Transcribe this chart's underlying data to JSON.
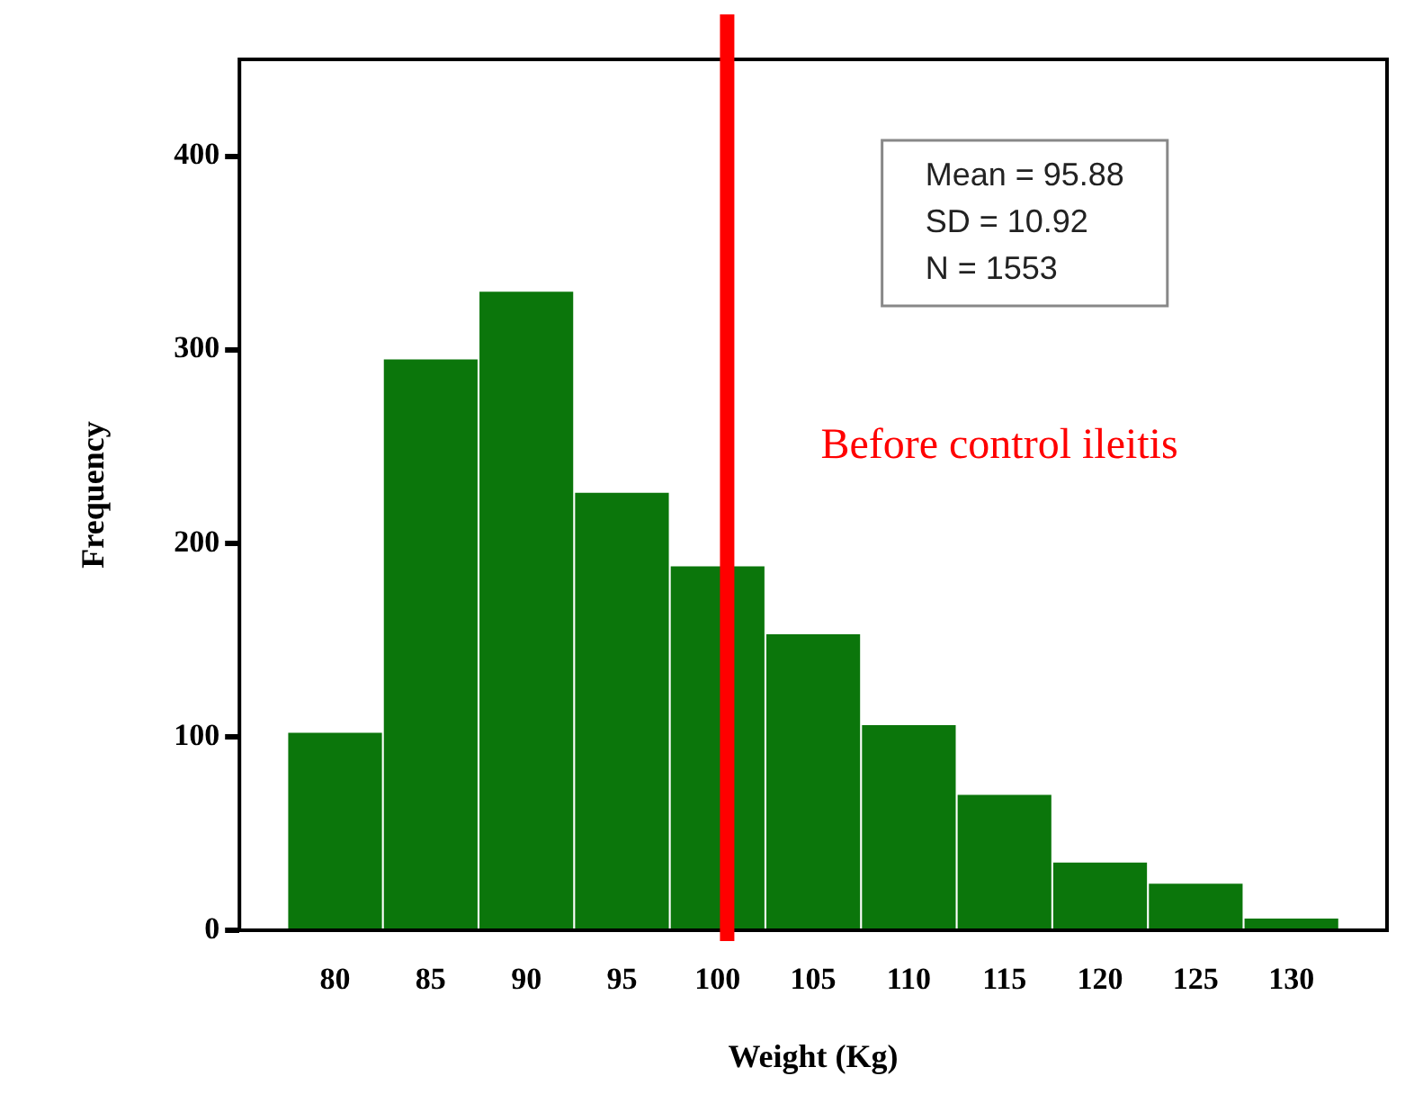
{
  "chart_data": {
    "type": "histogram",
    "xlabel": "Weight (Kg)",
    "ylabel": "Frequency",
    "bins": [
      77.5,
      82.5,
      87.5,
      92.5,
      97.5,
      102.5,
      107.5,
      112.5,
      117.5,
      122.5,
      127.5,
      132.5
    ],
    "values": [
      102,
      295,
      330,
      226,
      188,
      153,
      106,
      70,
      35,
      24,
      6
    ],
    "color": "#0b760b",
    "xlim": [
      75,
      135
    ],
    "xticks": [
      80,
      85,
      90,
      95,
      100,
      105,
      110,
      115,
      120,
      125,
      130
    ],
    "ylim": [
      0,
      450
    ],
    "yticks": [
      0,
      100,
      200,
      300,
      400
    ],
    "grid": false,
    "legend": false,
    "ref_lines": [
      {
        "axis": "x",
        "value": 100.5,
        "label": "Before control ileitis",
        "color": "#ff0000"
      }
    ],
    "annotations": [
      "Mean = 95.88",
      "SD = 10.92",
      "N = 1553"
    ]
  }
}
